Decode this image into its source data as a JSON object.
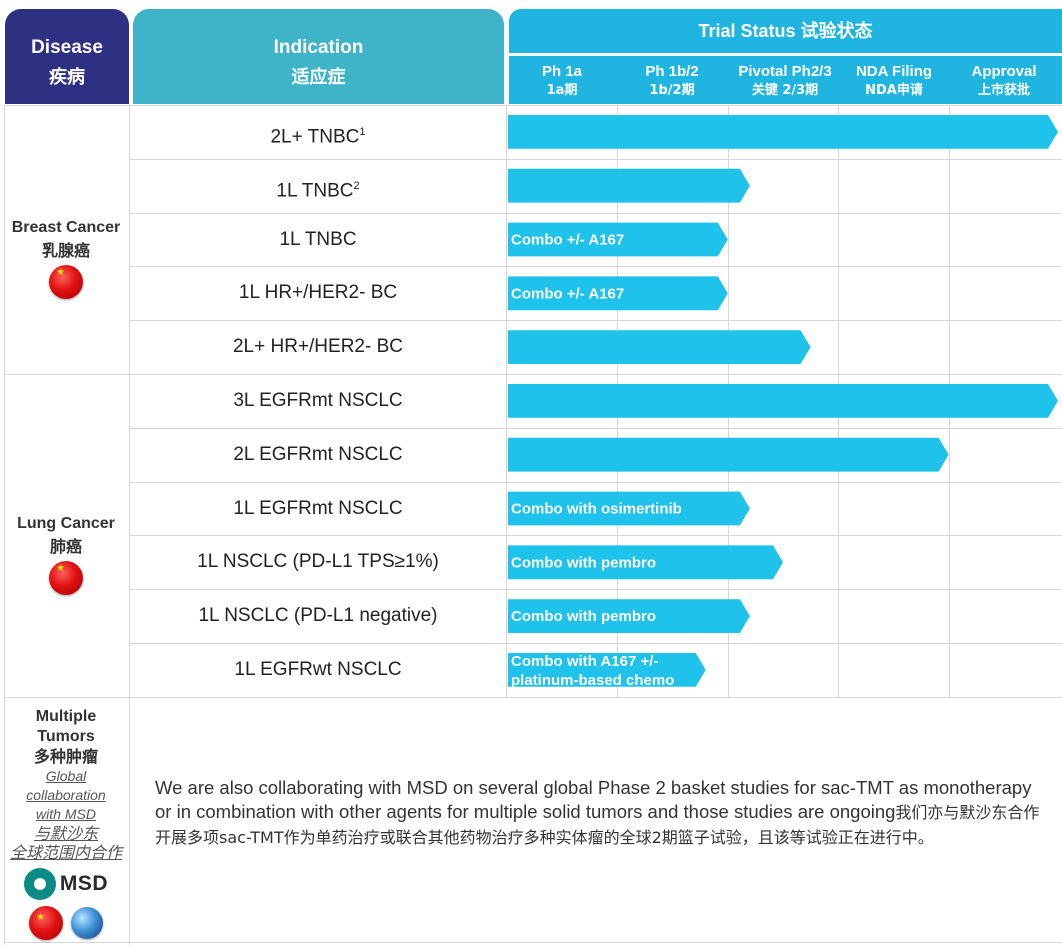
{
  "header": {
    "disease_en": "Disease",
    "disease_cn": "疾病",
    "indication_en": "Indication",
    "indication_cn": "适应症",
    "trial_status": "Trial Status 试验状态",
    "phases": [
      {
        "en": "Ph 1a",
        "cn": "1a期"
      },
      {
        "en": "Ph 1b/2",
        "cn": "1b/2期"
      },
      {
        "en": "Pivotal  Ph2/3",
        "cn": "关键 2/3期"
      },
      {
        "en": "NDA Filing",
        "cn": "NDA申请"
      },
      {
        "en": "Approval",
        "cn": "上市获批"
      }
    ]
  },
  "groups": [
    {
      "name_en": "Breast Cancer",
      "name_cn": "乳腺癌",
      "flag_icon": "china-flag-icon",
      "rows": [
        {
          "indication": "2L+ TNBC",
          "sup": "1",
          "progress": 5.0,
          "label": ""
        },
        {
          "indication": "1L TNBC",
          "sup": "2",
          "progress": 2.2,
          "label": ""
        },
        {
          "indication": "1L TNBC",
          "sup": "",
          "progress": 2.0,
          "label": "Combo +/- A167"
        },
        {
          "indication": "1L HR+/HER2- BC",
          "sup": "",
          "progress": 2.0,
          "label": "Combo +/- A167"
        },
        {
          "indication": "2L+ HR+/HER2- BC",
          "sup": "",
          "progress": 2.75,
          "label": ""
        }
      ]
    },
    {
      "name_en": "Lung Cancer",
      "name_cn": "肺癌",
      "flag_icon": "china-flag-icon",
      "rows": [
        {
          "indication": "3L EGFRmt NSCLC",
          "sup": "",
          "progress": 5.0,
          "label": ""
        },
        {
          "indication": "2L EGFRmt NSCLC",
          "sup": "",
          "progress": 4.0,
          "label": ""
        },
        {
          "indication": "1L EGFRmt NSCLC",
          "sup": "",
          "progress": 2.2,
          "label": "Combo with osimertinib"
        },
        {
          "indication": "1L NSCLC (PD-L1 TPS≥1%)",
          "sup": "",
          "progress": 2.5,
          "label": "Combo with pembro"
        },
        {
          "indication": "1L NSCLC (PD-L1 negative)",
          "sup": "",
          "progress": 2.2,
          "label": "Combo with pembro"
        },
        {
          "indication": "1L EGFRwt NSCLC",
          "sup": "",
          "progress": 1.8,
          "label": "Combo with A167 +/-",
          "label2": "platinum-based  chemo"
        }
      ]
    }
  ],
  "multiple": {
    "name_en_1": "Multiple",
    "name_en_2": "Tumors",
    "name_cn": "多种肿瘤",
    "collab_1": "Global",
    "collab_2": "collaboration",
    "collab_3": "with MSD",
    "collab_4": "与默沙东",
    "collab_5": "全球范围内合作",
    "msd_label": "MSD",
    "note_en": "We are also collaborating with MSD on several global Phase 2 basket studies for sac-TMT as monotherapy or in combination with other agents for multiple solid tumors and those studies are ongoing",
    "note_cn": "我们亦与默沙东合作开展多项sac-TMT作为单药治疗或联合其他药物治疗多种实体瘤的全球2期篮子试验，且该等试验正在进行中。"
  },
  "colors": {
    "navy": "#2e3181",
    "teal": "#3fb3c7",
    "bar": "#1ec2ea"
  }
}
